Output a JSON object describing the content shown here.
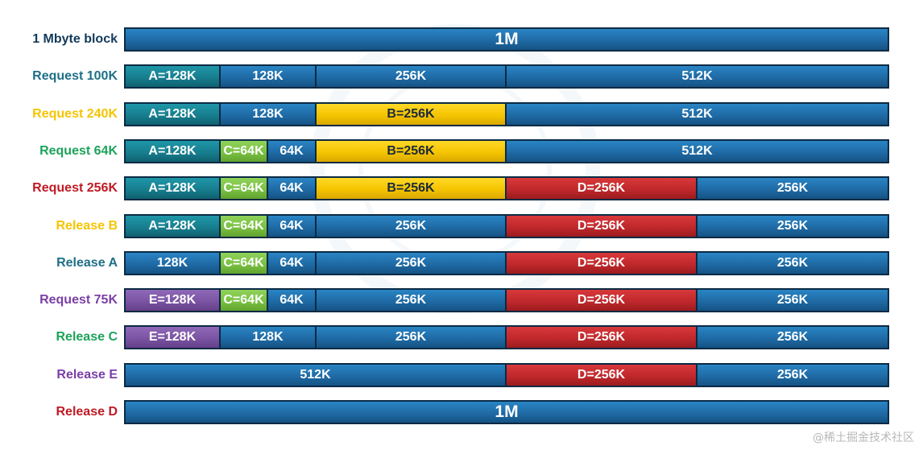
{
  "colors": {
    "free_blue": "#1f6aa5",
    "teal": "#177e8e",
    "green": "#7ac143",
    "yellow": "#f5c400",
    "red": "#c0282b",
    "purple": "#7b54a3",
    "border": "#0b2a44"
  },
  "rows": [
    {
      "label": "1 Mbyte block",
      "label_color": "#123a5a",
      "segments": [
        {
          "text": "1M",
          "size": 1024,
          "fill": "free"
        }
      ]
    },
    {
      "label": "Request 100K",
      "label_color": "#1e6f86",
      "segments": [
        {
          "text": "A=128K",
          "size": 128,
          "fill": "teal"
        },
        {
          "text": "128K",
          "size": 128,
          "fill": "free"
        },
        {
          "text": "256K",
          "size": 256,
          "fill": "free"
        },
        {
          "text": "512K",
          "size": 512,
          "fill": "free"
        }
      ]
    },
    {
      "label": "Request 240K",
      "label_color": "#f5c400",
      "segments": [
        {
          "text": "A=128K",
          "size": 128,
          "fill": "teal"
        },
        {
          "text": "128K",
          "size": 128,
          "fill": "free"
        },
        {
          "text": "B=256K",
          "size": 256,
          "fill": "yellow"
        },
        {
          "text": "512K",
          "size": 512,
          "fill": "free"
        }
      ]
    },
    {
      "label": "Request 64K",
      "label_color": "#1ca35a",
      "segments": [
        {
          "text": "A=128K",
          "size": 128,
          "fill": "teal"
        },
        {
          "text": "C=64K",
          "size": 64,
          "fill": "green"
        },
        {
          "text": "64K",
          "size": 64,
          "fill": "free"
        },
        {
          "text": "B=256K",
          "size": 256,
          "fill": "yellow"
        },
        {
          "text": "512K",
          "size": 512,
          "fill": "free"
        }
      ]
    },
    {
      "label": "Request 256K",
      "label_color": "#c01a24",
      "segments": [
        {
          "text": "A=128K",
          "size": 128,
          "fill": "teal"
        },
        {
          "text": "C=64K",
          "size": 64,
          "fill": "green"
        },
        {
          "text": "64K",
          "size": 64,
          "fill": "free"
        },
        {
          "text": "B=256K",
          "size": 256,
          "fill": "yellow"
        },
        {
          "text": "D=256K",
          "size": 256,
          "fill": "red"
        },
        {
          "text": "256K",
          "size": 256,
          "fill": "free"
        }
      ]
    },
    {
      "label": "Release B",
      "label_color": "#f5c400",
      "segments": [
        {
          "text": "A=128K",
          "size": 128,
          "fill": "teal"
        },
        {
          "text": "C=64K",
          "size": 64,
          "fill": "green"
        },
        {
          "text": "64K",
          "size": 64,
          "fill": "free"
        },
        {
          "text": "256K",
          "size": 256,
          "fill": "free"
        },
        {
          "text": "D=256K",
          "size": 256,
          "fill": "red"
        },
        {
          "text": "256K",
          "size": 256,
          "fill": "free"
        }
      ]
    },
    {
      "label": "Release A",
      "label_color": "#1e6f86",
      "segments": [
        {
          "text": "128K",
          "size": 128,
          "fill": "free"
        },
        {
          "text": "C=64K",
          "size": 64,
          "fill": "green"
        },
        {
          "text": "64K",
          "size": 64,
          "fill": "free"
        },
        {
          "text": "256K",
          "size": 256,
          "fill": "free"
        },
        {
          "text": "D=256K",
          "size": 256,
          "fill": "red"
        },
        {
          "text": "256K",
          "size": 256,
          "fill": "free"
        }
      ]
    },
    {
      "label": "Request 75K",
      "label_color": "#7b3fa6",
      "segments": [
        {
          "text": "E=128K",
          "size": 128,
          "fill": "purple"
        },
        {
          "text": "C=64K",
          "size": 64,
          "fill": "green"
        },
        {
          "text": "64K",
          "size": 64,
          "fill": "free"
        },
        {
          "text": "256K",
          "size": 256,
          "fill": "free"
        },
        {
          "text": "D=256K",
          "size": 256,
          "fill": "red"
        },
        {
          "text": "256K",
          "size": 256,
          "fill": "free"
        }
      ]
    },
    {
      "label": "Release C",
      "label_color": "#1ca35a",
      "segments": [
        {
          "text": "E=128K",
          "size": 128,
          "fill": "purple"
        },
        {
          "text": "128K",
          "size": 128,
          "fill": "free"
        },
        {
          "text": "256K",
          "size": 256,
          "fill": "free"
        },
        {
          "text": "D=256K",
          "size": 256,
          "fill": "red"
        },
        {
          "text": "256K",
          "size": 256,
          "fill": "free"
        }
      ]
    },
    {
      "label": "Release E",
      "label_color": "#7b3fa6",
      "segments": [
        {
          "text": "512K",
          "size": 512,
          "fill": "free"
        },
        {
          "text": "D=256K",
          "size": 256,
          "fill": "red"
        },
        {
          "text": "256K",
          "size": 256,
          "fill": "free"
        }
      ]
    },
    {
      "label": "Release D",
      "label_color": "#c01a24",
      "segments": [
        {
          "text": "1M",
          "size": 1024,
          "fill": "free"
        }
      ]
    }
  ],
  "watermark": "@稀土掘金技术社区"
}
